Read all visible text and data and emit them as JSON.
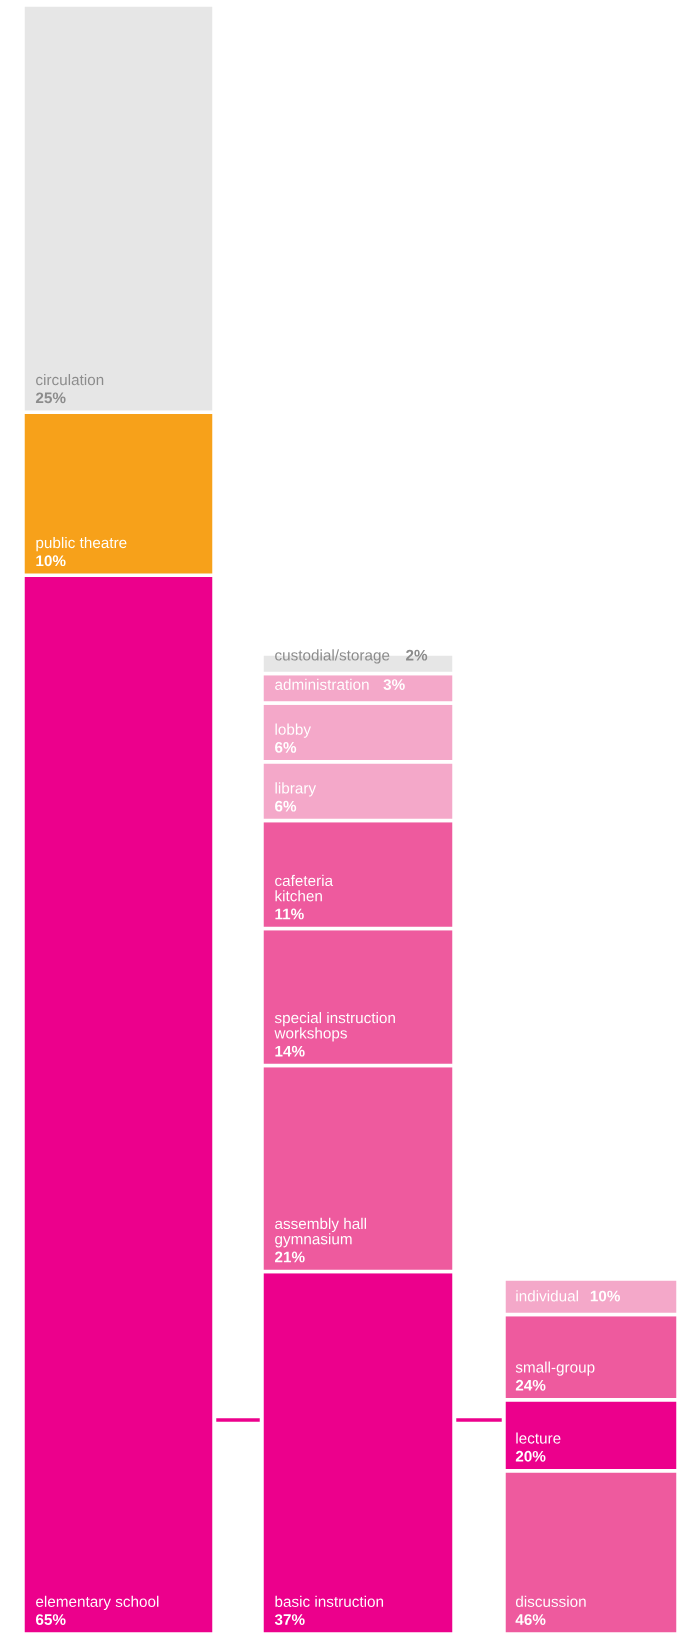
{
  "chart_data": [
    {
      "type": "bar",
      "stacked": true,
      "categories": [
        null
      ],
      "ylim": [
        0,
        100
      ],
      "tick_labels": false,
      "series": [
        {
          "name": "elementary school",
          "color": "#ec008c",
          "values": [
            65
          ],
          "value_labels": [
            "65%"
          ]
        },
        {
          "name": "public theatre",
          "color": "#f7a11a",
          "values": [
            10
          ],
          "value_labels": [
            "10%"
          ]
        },
        {
          "name": "circulation",
          "color": "#e6e6e6",
          "values": [
            25
          ],
          "value_labels": [
            "25%"
          ]
        }
      ]
    },
    {
      "type": "bar",
      "stacked": true,
      "categories": [
        null
      ],
      "ylim": [
        0,
        100
      ],
      "tick_labels": false,
      "series": [
        {
          "name": "basic instruction",
          "color": "#ec008c",
          "values": [
            37
          ],
          "value_labels": [
            "37%"
          ]
        },
        {
          "name": "assembly hall\ngymnasium",
          "color": "#ee5a9e",
          "values": [
            21
          ],
          "value_labels": [
            "21%"
          ]
        },
        {
          "name": "special instruction\nworkshops",
          "color": "#ee5a9e",
          "values": [
            14
          ],
          "value_labels": [
            "14%"
          ]
        },
        {
          "name": "cafeteria\nkitchen",
          "color": "#ee5a9e",
          "values": [
            11
          ],
          "value_labels": [
            "11%"
          ]
        },
        {
          "name": "library",
          "color": "#f4a8c9",
          "values": [
            6
          ],
          "value_labels": [
            "6%"
          ]
        },
        {
          "name": "lobby",
          "color": "#f4a8c9",
          "values": [
            6
          ],
          "value_labels": [
            "6%"
          ]
        },
        {
          "name": "administration",
          "color": "#f4a8c9",
          "values": [
            3
          ],
          "value_labels": [
            "3%"
          ]
        },
        {
          "name": "custodial/storage",
          "color": "#e6e6e6",
          "values": [
            2
          ],
          "value_labels": [
            "2%"
          ]
        }
      ]
    },
    {
      "type": "bar",
      "stacked": true,
      "categories": [
        null
      ],
      "ylim": [
        0,
        100
      ],
      "tick_labels": false,
      "series": [
        {
          "name": "discussion",
          "color": "#ee5a9e",
          "values": [
            46
          ],
          "value_labels": [
            "46%"
          ]
        },
        {
          "name": "lecture",
          "color": "#ec008c",
          "values": [
            20
          ],
          "value_labels": [
            "20%"
          ]
        },
        {
          "name": "small-group",
          "color": "#ee5a9e",
          "values": [
            24
          ],
          "value_labels": [
            "24%"
          ]
        },
        {
          "name": "individual",
          "color": "#f4a8c9",
          "values": [
            10
          ],
          "value_labels": [
            "10%"
          ]
        }
      ]
    }
  ]
}
